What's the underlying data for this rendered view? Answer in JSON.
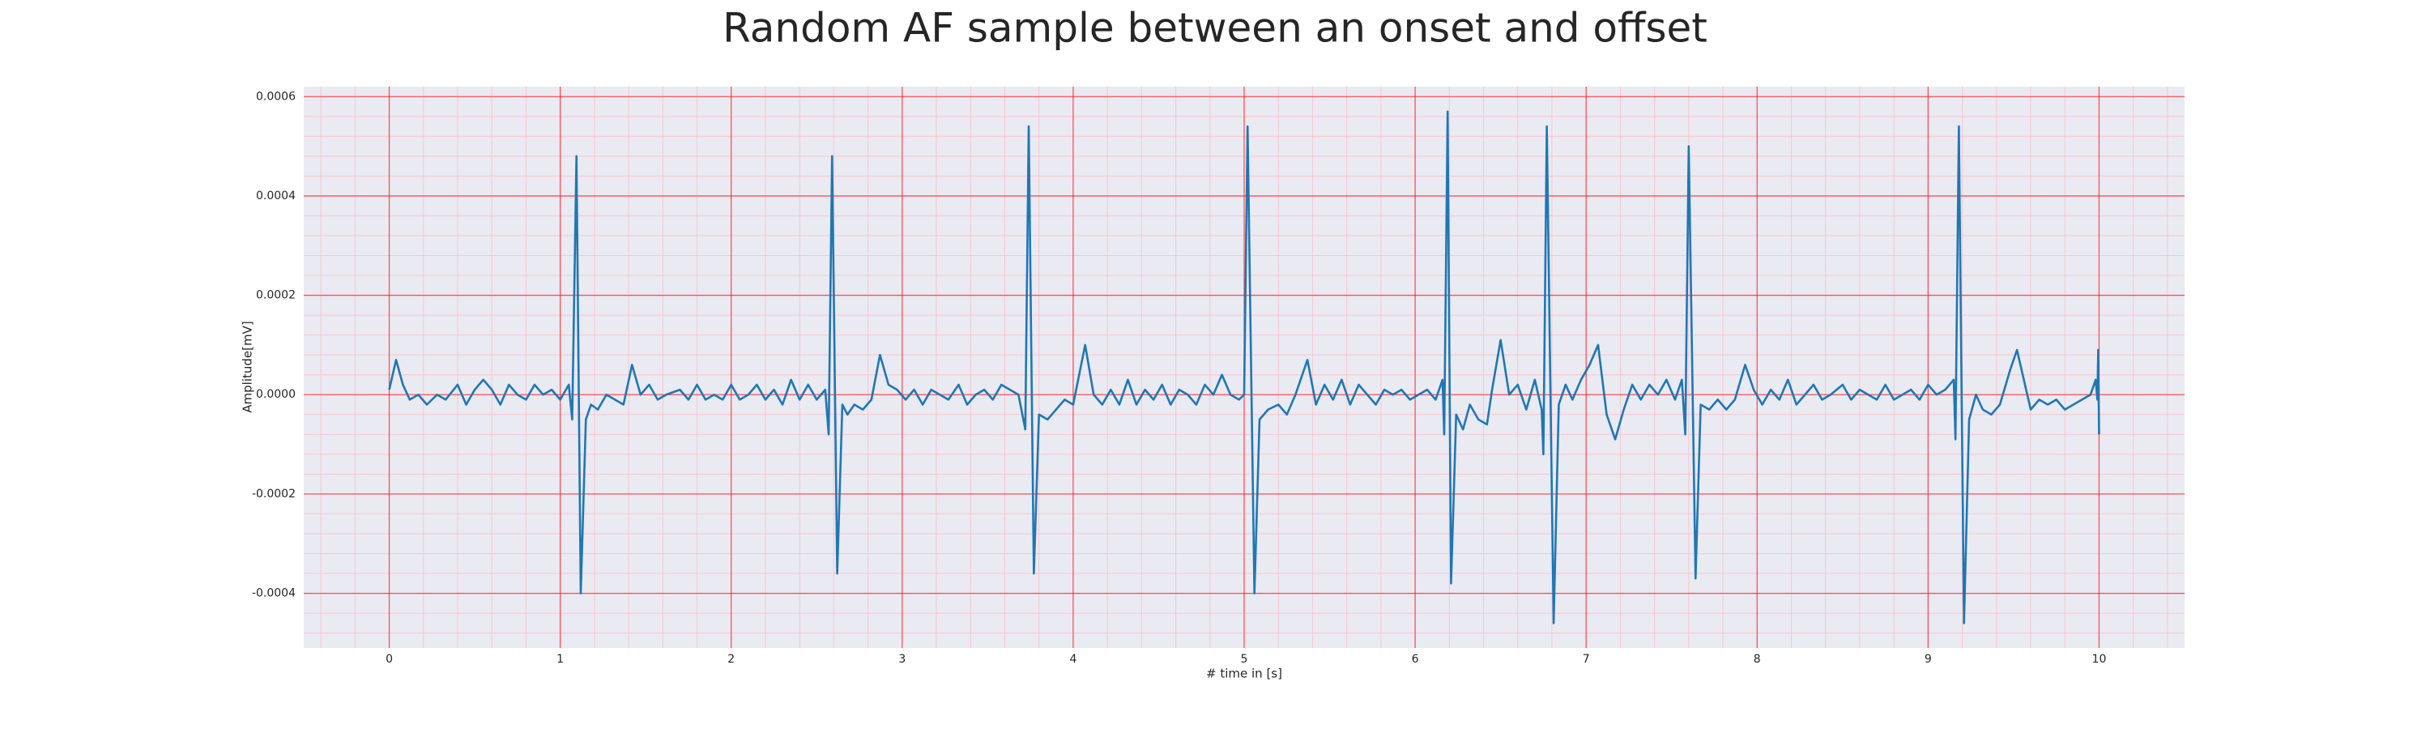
{
  "chart_data": {
    "type": "line",
    "title": "Random AF sample between an onset and offset",
    "xlabel": "# time in [s]",
    "ylabel": "Amplitude[mV]",
    "color": "#1f77b4",
    "grid": true,
    "grid_color": "#ff0000",
    "minor_grid": true,
    "minor_grid_color": "#ffb6c1",
    "xlim": [
      -0.5,
      10.5
    ],
    "xticks": [
      0,
      1,
      2,
      3,
      4,
      5,
      6,
      7,
      8,
      9,
      10
    ],
    "ylim": [
      -0.00051,
      0.00062
    ],
    "yticks": [
      -0.0004,
      -0.0002,
      {
        "value": 0,
        "label": "0.0000"
      },
      0.0002,
      0.0004,
      0.0006
    ],
    "x": [
      0,
      0.04,
      0.08,
      0.12,
      0.17,
      0.22,
      0.28,
      0.33,
      0.4,
      0.45,
      0.5,
      0.55,
      0.6,
      0.65,
      0.7,
      0.75,
      0.8,
      0.85,
      0.9,
      0.95,
      1.0,
      1.05,
      1.07,
      1.095,
      1.12,
      1.15,
      1.18,
      1.22,
      1.27,
      1.32,
      1.37,
      1.42,
      1.47,
      1.52,
      1.57,
      1.62,
      1.7,
      1.75,
      1.8,
      1.85,
      1.9,
      1.95,
      2.0,
      2.05,
      2.1,
      2.15,
      2.2,
      2.25,
      2.3,
      2.35,
      2.4,
      2.45,
      2.5,
      2.55,
      2.57,
      2.59,
      2.62,
      2.65,
      2.68,
      2.72,
      2.77,
      2.82,
      2.87,
      2.92,
      2.97,
      3.02,
      3.07,
      3.12,
      3.17,
      3.22,
      3.27,
      3.33,
      3.38,
      3.43,
      3.48,
      3.53,
      3.58,
      3.63,
      3.68,
      3.72,
      3.74,
      3.77,
      3.8,
      3.85,
      3.9,
      3.95,
      4.0,
      4.07,
      4.12,
      4.17,
      4.22,
      4.27,
      4.32,
      4.37,
      4.42,
      4.47,
      4.52,
      4.57,
      4.62,
      4.67,
      4.72,
      4.77,
      4.82,
      4.87,
      4.92,
      4.97,
      5.0,
      5.02,
      5.06,
      5.09,
      5.14,
      5.2,
      5.25,
      5.3,
      5.37,
      5.42,
      5.47,
      5.52,
      5.57,
      5.62,
      5.67,
      5.72,
      5.77,
      5.82,
      5.87,
      5.92,
      5.97,
      6.02,
      6.07,
      6.12,
      6.16,
      6.17,
      6.19,
      6.21,
      6.24,
      6.28,
      6.32,
      6.37,
      6.42,
      6.45,
      6.5,
      6.55,
      6.6,
      6.65,
      6.7,
      6.74,
      6.75,
      6.77,
      6.81,
      6.84,
      6.88,
      6.92,
      6.97,
      7.02,
      7.07,
      7.12,
      7.17,
      7.22,
      7.27,
      7.32,
      7.37,
      7.42,
      7.47,
      7.52,
      7.56,
      7.58,
      7.6,
      7.64,
      7.67,
      7.72,
      7.77,
      7.82,
      7.87,
      7.93,
      7.98,
      8.03,
      8.08,
      8.13,
      8.18,
      8.23,
      8.28,
      8.33,
      8.38,
      8.43,
      8.5,
      8.55,
      8.6,
      8.65,
      8.7,
      8.75,
      8.8,
      8.85,
      8.9,
      8.95,
      9.0,
      9.05,
      9.1,
      9.15,
      9.16,
      9.18,
      9.21,
      9.24,
      9.28,
      9.32,
      9.37,
      9.42,
      9.48,
      9.52,
      9.56,
      9.6,
      9.65,
      9.7,
      9.75,
      9.8,
      9.85,
      9.9,
      9.95,
      9.98,
      9.99,
      9.995,
      10.0
    ],
    "values": [
      1e-05,
      7e-05,
      2e-05,
      -1e-05,
      0,
      -2e-05,
      0,
      -1e-05,
      2e-05,
      -2e-05,
      1e-05,
      3e-05,
      1e-05,
      -2e-05,
      2e-05,
      0,
      -1e-05,
      2e-05,
      0,
      1e-05,
      -1e-05,
      2e-05,
      -5e-05,
      0.00048,
      -0.0004,
      -5e-05,
      -2e-05,
      -3e-05,
      0,
      -1e-05,
      -2e-05,
      6e-05,
      0,
      2e-05,
      -1e-05,
      0,
      1e-05,
      -1e-05,
      2e-05,
      -1e-05,
      0,
      -1e-05,
      2e-05,
      -1e-05,
      0,
      2e-05,
      -1e-05,
      1e-05,
      -2e-05,
      3e-05,
      -1e-05,
      2e-05,
      -1e-05,
      1e-05,
      -8e-05,
      0.00048,
      -0.00036,
      -2e-05,
      -4e-05,
      -2e-05,
      -3e-05,
      -1e-05,
      8e-05,
      2e-05,
      1e-05,
      -1e-05,
      1e-05,
      -2e-05,
      1e-05,
      0,
      -1e-05,
      2e-05,
      -2e-05,
      0,
      1e-05,
      -1e-05,
      2e-05,
      1e-05,
      0,
      -7e-05,
      0.00054,
      -0.00036,
      -4e-05,
      -5e-05,
      -3e-05,
      -1e-05,
      -2e-05,
      0.0001,
      0,
      -2e-05,
      1e-05,
      -2e-05,
      3e-05,
      -2e-05,
      1e-05,
      -1e-05,
      2e-05,
      -2e-05,
      1e-05,
      0,
      -2e-05,
      2e-05,
      0,
      4e-05,
      0,
      -1e-05,
      0,
      0.00054,
      -0.0004,
      -5e-05,
      -3e-05,
      -2e-05,
      -4e-05,
      0,
      7e-05,
      -2e-05,
      2e-05,
      -1e-05,
      3e-05,
      -2e-05,
      2e-05,
      0,
      -2e-05,
      1e-05,
      0,
      1e-05,
      -1e-05,
      0,
      1e-05,
      -1e-05,
      3e-05,
      -8e-05,
      0.00057,
      -0.00038,
      -4e-05,
      -7e-05,
      -2e-05,
      -5e-05,
      -6e-05,
      1e-05,
      0.00011,
      0,
      2e-05,
      -3e-05,
      3e-05,
      -3e-05,
      -0.00012,
      0.00054,
      -0.00046,
      -2e-05,
      2e-05,
      -1e-05,
      3e-05,
      6e-05,
      0.0001,
      -4e-05,
      -9e-05,
      -3e-05,
      2e-05,
      -1e-05,
      2e-05,
      0,
      3e-05,
      -1e-05,
      3e-05,
      -8e-05,
      0.0005,
      -0.00037,
      -2e-05,
      -3e-05,
      -1e-05,
      -3e-05,
      -1e-05,
      6e-05,
      1e-05,
      -2e-05,
      1e-05,
      -1e-05,
      3e-05,
      -2e-05,
      0,
      2e-05,
      -1e-05,
      0,
      2e-05,
      -1e-05,
      1e-05,
      0,
      -1e-05,
      2e-05,
      -1e-05,
      0,
      1e-05,
      -1e-05,
      2e-05,
      0,
      1e-05,
      3e-05,
      -9e-05,
      0.00054,
      -0.00046,
      -5e-05,
      0,
      -3e-05,
      -4e-05,
      -2e-05,
      5e-05,
      9e-05,
      3e-05,
      -3e-05,
      -1e-05,
      -2e-05,
      -1e-05,
      -3e-05,
      -2e-05,
      -1e-05,
      0,
      3e-05,
      -1e-05,
      9e-05,
      -8e-05
    ]
  }
}
